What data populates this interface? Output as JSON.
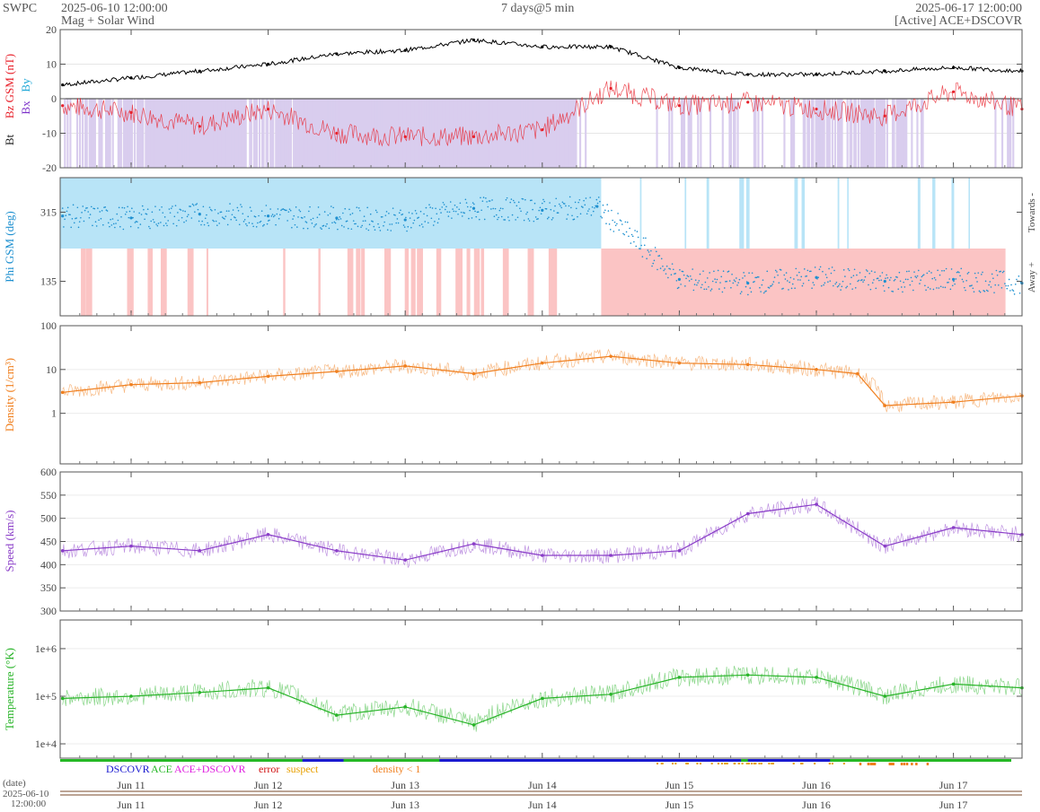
{
  "header": {
    "org": "SWPC",
    "start_time": "2025-06-10 12:00:00",
    "subtitle": "Mag + Solar Wind",
    "span": "7 days@5 min",
    "end_time": "2025-06-17 12:00:00",
    "source": "[Active] ACE+DSCOVR"
  },
  "colors": {
    "bt": "#000000",
    "bz": "#e8202a",
    "bx": "#7b2fc9",
    "by": "#1ea7d6",
    "phi": "#1e90d0",
    "phi_towards": "#b8e4f7",
    "phi_away": "#fbc4c4",
    "density": "#f07f1e",
    "speed": "#8a3dc8",
    "temperature": "#28b428",
    "bz_fill": "#d9cdee",
    "dscovr": "#1a1ad0",
    "ace": "#25b825",
    "ace_dscovr": "#e020e0",
    "error": "#d01010",
    "suspect": "#e8a000",
    "density_lt1": "#f07f1e"
  },
  "bottom_legend": {
    "dscovr": "DSCOVR",
    "ace": "ACE",
    "ace_dscovr": "ACE+DSCOVR",
    "error": "error",
    "suspect": "suspect",
    "density_lt1": "density < 1"
  },
  "date_label": "(date)",
  "date_start": "2025-06-10",
  "date_start_time": "12:00:00",
  "chart_data": [
    {
      "type": "line",
      "panel": "mag",
      "ylabels": [
        "Bt",
        "Bz GSM (nT)",
        "Bx",
        "By"
      ],
      "ylim": [
        -20,
        20
      ],
      "yticks": [
        "20",
        "10",
        "0",
        "-10",
        "-20"
      ],
      "x_days": [
        "Jun 11",
        "Jun 12",
        "Jun 13",
        "Jun 14",
        "Jun 15",
        "Jun 16",
        "Jun 17"
      ],
      "x": [
        0,
        0.5,
        1,
        1.5,
        2,
        2.5,
        3,
        3.5,
        4,
        4.5,
        5,
        5.5,
        6,
        6.5,
        7
      ],
      "series": [
        {
          "name": "Bt",
          "values": [
            4,
            6,
            8,
            10,
            13,
            14,
            17,
            15,
            15,
            9,
            7,
            7,
            8,
            9,
            8
          ]
        },
        {
          "name": "Bz GSM",
          "values": [
            -2,
            -4,
            -8,
            -3,
            -10,
            -11,
            -11,
            -9,
            3,
            -2,
            -1,
            -3,
            -5,
            2,
            -3
          ]
        }
      ]
    },
    {
      "type": "scatter",
      "panel": "phi",
      "ylabel": "Phi GSM (deg)",
      "right_labels": [
        "Towards -",
        "Away +"
      ],
      "ylim": [
        45,
        405
      ],
      "yticks": [
        "315",
        "135"
      ],
      "x": [
        0,
        0.5,
        1,
        1.5,
        2,
        2.5,
        3,
        3.5,
        3.9,
        4.5,
        5,
        5.5,
        6,
        6.5,
        7
      ],
      "values": [
        305,
        300,
        310,
        305,
        300,
        295,
        325,
        320,
        330,
        140,
        130,
        145,
        135,
        140,
        130
      ]
    },
    {
      "type": "line",
      "panel": "density",
      "ylabel": "Density (1/cm³)",
      "scale": "log",
      "ylim": [
        0.07,
        100
      ],
      "yticks": [
        "100",
        "10",
        "1"
      ],
      "x": [
        0,
        0.5,
        1,
        1.5,
        2,
        2.5,
        3,
        3.5,
        4,
        4.5,
        5,
        5.5,
        5.8,
        6,
        6.5,
        7
      ],
      "values": [
        3,
        4.5,
        5,
        7,
        9,
        12,
        8,
        14,
        20,
        14,
        13,
        10,
        8,
        1.5,
        1.8,
        2.5
      ]
    },
    {
      "type": "line",
      "panel": "speed",
      "ylabel": "Speed (km/s)",
      "ylim": [
        300,
        600
      ],
      "yticks": [
        "600",
        "550",
        "500",
        "450",
        "400",
        "350",
        "300"
      ],
      "x": [
        0,
        0.5,
        1,
        1.5,
        2,
        2.5,
        3,
        3.5,
        4,
        4.5,
        5,
        5.5,
        6,
        6.5,
        7
      ],
      "values": [
        430,
        440,
        430,
        465,
        430,
        410,
        445,
        420,
        420,
        430,
        510,
        530,
        440,
        480,
        465
      ]
    },
    {
      "type": "line",
      "panel": "temperature",
      "ylabel": "Temperature (°K)",
      "scale": "log",
      "ylim": [
        5000,
        4000000
      ],
      "yticks": [
        "1e+6",
        "1e+5",
        "1e+4"
      ],
      "x": [
        0,
        0.5,
        1,
        1.5,
        2,
        2.5,
        3,
        3.5,
        4,
        4.5,
        5,
        5.5,
        6,
        6.5,
        7
      ],
      "values": [
        90000,
        100000,
        120000,
        150000,
        40000,
        60000,
        25000,
        90000,
        110000,
        250000,
        280000,
        250000,
        100000,
        180000,
        150000
      ]
    }
  ]
}
